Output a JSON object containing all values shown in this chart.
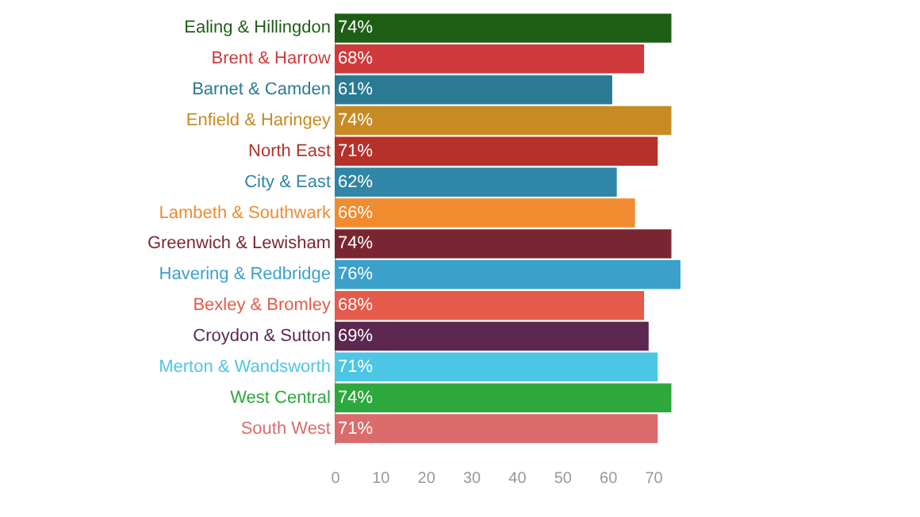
{
  "chart_data": {
    "type": "bar",
    "orientation": "horizontal",
    "categories": [
      "Ealing & Hillingdon",
      "Brent & Harrow",
      "Barnet & Camden",
      "Enfield & Haringey",
      "North East",
      "City & East",
      "Lambeth & Southwark",
      "Greenwich & Lewisham",
      "Havering & Redbridge",
      "Bexley & Bromley",
      "Croydon & Sutton",
      "Merton & Wandsworth",
      "West Central",
      "South West"
    ],
    "values": [
      74,
      68,
      61,
      74,
      71,
      62,
      66,
      74,
      76,
      68,
      69,
      71,
      74,
      71
    ],
    "colors": [
      "#1d5e14",
      "#d0393b",
      "#2b7a94",
      "#c88a22",
      "#b5312a",
      "#2f86a6",
      "#f08b30",
      "#7a2632",
      "#3ba1cb",
      "#e55a4b",
      "#5c2750",
      "#4dc6e6",
      "#2ca83c",
      "#dc6b6b"
    ],
    "value_labels": [
      "74%",
      "68%",
      "61%",
      "74%",
      "71%",
      "62%",
      "66%",
      "74%",
      "76%",
      "68%",
      "69%",
      "71%",
      "74%",
      "71%"
    ],
    "xlim": [
      0,
      76
    ],
    "xticks": [
      0,
      10,
      20,
      30,
      40,
      50,
      60,
      70
    ],
    "grid": false
  }
}
